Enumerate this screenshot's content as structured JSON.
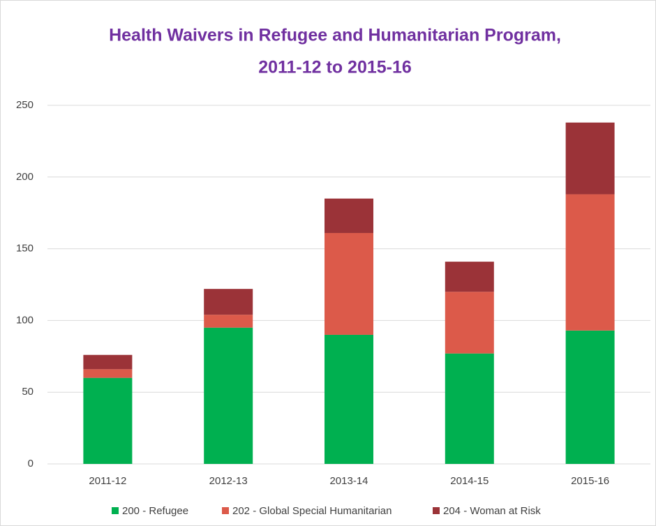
{
  "chart_data": {
    "type": "stacked_bar",
    "title": [
      "Health Waivers in Refugee and Humanitarian Program,",
      "2011-12 to 2015-16"
    ],
    "categories": [
      "2011-12",
      "2012-13",
      "2013-14",
      "2014-15",
      "2015-16"
    ],
    "series": [
      {
        "name": "200 - Refugee",
        "color": "#00b050",
        "values": [
          60,
          95,
          90,
          77,
          93
        ]
      },
      {
        "name": "202 - Global Special Humanitarian",
        "color": "#dc5a4a",
        "values": [
          6,
          9,
          71,
          43,
          95
        ]
      },
      {
        "name": "204 - Woman at Risk",
        "color": "#9b3338",
        "values": [
          10,
          18,
          24,
          21,
          50
        ]
      }
    ],
    "ylim": [
      0,
      250
    ],
    "yticks": [
      0,
      50,
      100,
      150,
      200,
      250
    ],
    "grid": true,
    "legend": "bottom"
  }
}
